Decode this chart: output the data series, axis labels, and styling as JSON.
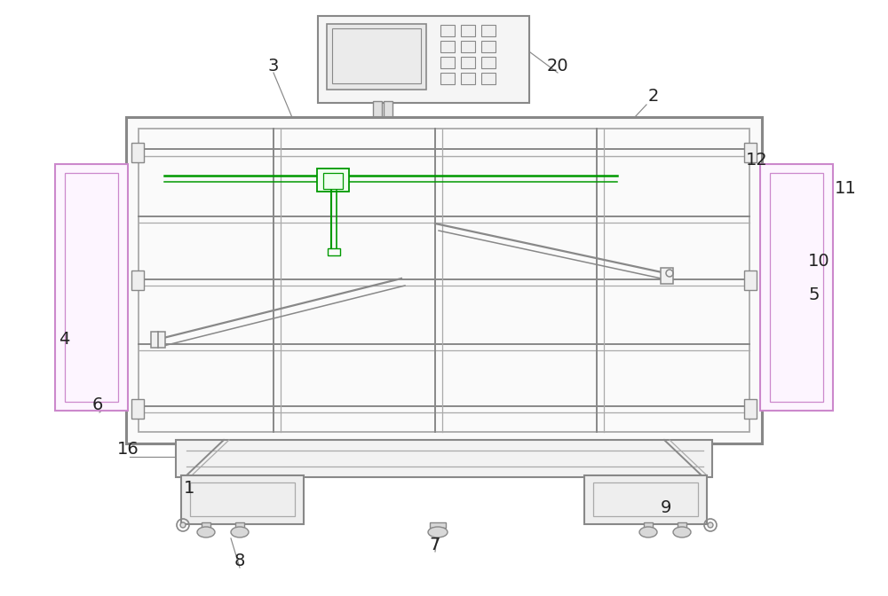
{
  "bg_color": "#ffffff",
  "lc": "#aaaaaa",
  "dc": "#888888",
  "pc": "#cc88cc",
  "gc": "#009900",
  "label_color": "#222222",
  "figsize": [
    10.0,
    6.72
  ]
}
